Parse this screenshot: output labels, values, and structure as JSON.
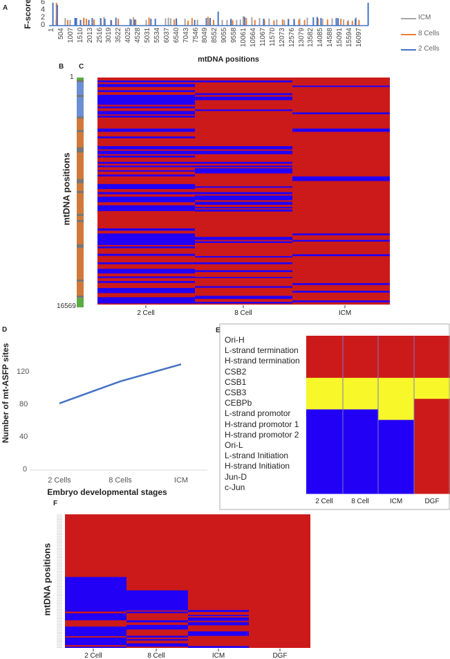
{
  "panels": {
    "a": "A",
    "b": "B",
    "c": "C",
    "d": "D",
    "e": "E",
    "f": "F"
  },
  "colors": {
    "icm": "#a5a5a5",
    "cells8": "#ed7d31",
    "cells2": "#4472c4",
    "red": "#cc1a1a",
    "blue": "#2200f5",
    "yellow": "#f7f72a",
    "green": "#5aac44",
    "orange": "#d0793a",
    "grey": "#777777",
    "genomeBlue": "#6b8fd4"
  },
  "chart_data": [
    {
      "panel": "A",
      "type": "bar",
      "ylabel": "F-score",
      "xlabel": "mtDNA positions",
      "ylim": [
        0,
        6
      ],
      "yticks": [
        "0",
        "2",
        "4",
        "6"
      ],
      "xlim": [
        1,
        16569
      ],
      "xticks": [
        "1",
        "504",
        "1007",
        "1510",
        "2013",
        "2516",
        "3019",
        "3522",
        "4025",
        "4528",
        "5031",
        "5534",
        "6037",
        "6540",
        "7043",
        "7546",
        "8049",
        "8552",
        "9055",
        "9558",
        "10061",
        "10564",
        "11067",
        "11570",
        "12073",
        "12576",
        "13079",
        "13582",
        "14085",
        "14588",
        "15091",
        "15594",
        "16097"
      ],
      "legend": {
        "placement": "right",
        "entries": [
          "ICM",
          "8 Cells",
          "2 Cells"
        ]
      },
      "series": [
        {
          "name": "ICM",
          "points": [
            [
              360,
              1.5
            ],
            [
              830,
              2
            ],
            [
              1085,
              1.5
            ],
            [
              1630,
              1.5
            ],
            [
              1810,
              2.1
            ],
            [
              2860,
              2.3
            ],
            [
              4220,
              1.8
            ],
            [
              4400,
              2.2
            ],
            [
              5070,
              1.5
            ],
            [
              6080,
              1.9
            ],
            [
              6230,
              2.1
            ],
            [
              6350,
              1.9
            ],
            [
              6650,
              1.3
            ],
            [
              7100,
              1.8
            ],
            [
              7750,
              1.6
            ],
            [
              8400,
              1.8
            ],
            [
              9050,
              1.5
            ],
            [
              9300,
              1.5
            ],
            [
              9520,
              1.8
            ],
            [
              9800,
              1.5
            ],
            [
              10000,
              1.6
            ],
            [
              10150,
              2.5
            ],
            [
              10600,
              2.2
            ],
            [
              11000,
              2
            ],
            [
              11500,
              1.9
            ],
            [
              11900,
              1.6
            ],
            [
              12300,
              1.5
            ],
            [
              12800,
              1.8
            ],
            [
              13100,
              1.9
            ],
            [
              13500,
              2.1
            ],
            [
              14300,
              1.8
            ],
            [
              14800,
              1.9
            ],
            [
              15100,
              2
            ],
            [
              15400,
              1.6
            ],
            [
              15650,
              1.4
            ],
            [
              16050,
              2.2
            ]
          ]
        },
        {
          "name": "8 Cells",
          "points": [
            [
              315,
              6
            ],
            [
              905,
              1.5
            ],
            [
              1740,
              2
            ],
            [
              1880,
              1.8
            ],
            [
              2280,
              1.6
            ],
            [
              2640,
              1.8
            ],
            [
              3190,
              1.3
            ],
            [
              3550,
              1.8
            ],
            [
              4460,
              1.6
            ],
            [
              5160,
              2.1
            ],
            [
              6480,
              1.6
            ],
            [
              7200,
              1.3
            ],
            [
              7410,
              2
            ],
            [
              8250,
              2.3
            ],
            [
              8540,
              1.5
            ],
            [
              9540,
              1.4
            ],
            [
              10250,
              2
            ],
            [
              10700,
              1.5
            ],
            [
              11200,
              1.6
            ],
            [
              11700,
              1.4
            ],
            [
              12150,
              1.6
            ],
            [
              12450,
              1.8
            ],
            [
              13000,
              1.5
            ],
            [
              13300,
              1.5
            ],
            [
              14000,
              1.9
            ],
            [
              14500,
              1.6
            ],
            [
              15200,
              1.8
            ],
            [
              15550,
              1.2
            ],
            [
              15800,
              1.3
            ],
            [
              16150,
              1.5
            ]
          ]
        },
        {
          "name": "2 Cells",
          "points": [
            [
              72,
              6
            ],
            [
              300,
              5.5
            ],
            [
              1230,
              2
            ],
            [
              1300,
              2
            ],
            [
              1520,
              1.5
            ],
            [
              1950,
              1.5
            ],
            [
              2130,
              2
            ],
            [
              2570,
              2
            ],
            [
              2790,
              1.8
            ],
            [
              3110,
              1.5
            ],
            [
              3370,
              2.1
            ],
            [
              4160,
              1.6
            ],
            [
              4350,
              1.6
            ],
            [
              5200,
              1.8
            ],
            [
              5430,
              1.8
            ],
            [
              6530,
              1.9
            ],
            [
              7490,
              1.5
            ],
            [
              8100,
              2
            ],
            [
              8300,
              2
            ],
            [
              8720,
              3.7
            ],
            [
              9380,
              1.7
            ],
            [
              10100,
              2.3
            ],
            [
              11100,
              1.8
            ],
            [
              12400,
              1.7
            ],
            [
              12700,
              1.6
            ],
            [
              13700,
              2.2
            ],
            [
              13900,
              2.3
            ],
            [
              14100,
              2
            ],
            [
              14900,
              2
            ],
            [
              15000,
              1.9
            ],
            [
              15900,
              1.8
            ],
            [
              16569,
              6
            ]
          ]
        }
      ]
    },
    {
      "panel": "B",
      "type": "genome-map",
      "top_label": "1",
      "bottom_label": "16569",
      "segments": [
        {
          "start": 1,
          "end": 200,
          "kind": "green"
        },
        {
          "start": 200,
          "end": 2900,
          "kind": "genomeBlue"
        },
        {
          "start": 2900,
          "end": 15900,
          "kind": "orange"
        },
        {
          "start": 15900,
          "end": 16569,
          "kind": "green"
        }
      ],
      "trna_marks": [
        260,
        1330,
        2880,
        3860,
        5100,
        5200,
        5330,
        7400,
        7550,
        8250,
        9900,
        10350,
        12100,
        12200,
        14640,
        15800
      ]
    },
    {
      "panel": "C",
      "type": "heatmap",
      "ylabel": "mtDNA positions",
      "columns": [
        {
          "label": "2 Cell",
          "blue_ranges": [
            [
              219,
              354
            ],
            [
              472,
              691
            ],
            [
              927,
              1062
            ],
            [
              1264,
              1989
            ],
            [
              2107,
              2242
            ],
            [
              2445,
              2698
            ],
            [
              2782,
              2917
            ],
            [
              3726,
              3962
            ],
            [
              4299,
              4434
            ],
            [
              5007,
              5243
            ],
            [
              5344,
              5597
            ],
            [
              5699,
              5834
            ],
            [
              6154,
              6289
            ],
            [
              6424,
              6542
            ],
            [
              6761,
              6862
            ],
            [
              7081,
              7216
            ],
            [
              7773,
              8143
            ],
            [
              8362,
              8514
            ],
            [
              8700,
              9104
            ],
            [
              9324,
              9745
            ],
            [
              11010,
              11179
            ],
            [
              11381,
              12224
            ],
            [
              12325,
              12460
            ],
            [
              12864,
              13015
            ],
            [
              13487,
              13622
            ],
            [
              13959,
              14297
            ],
            [
              14516,
              14634
            ],
            [
              14853,
              14988
            ],
            [
              15359,
              15730
            ],
            [
              16034,
              16489
            ]
          ]
        },
        {
          "label": "8 Cell",
          "blue_ranges": [
            [
              219,
              354
            ],
            [
              1146,
              1281
            ],
            [
              1399,
              1652
            ],
            [
              2327,
              2445
            ],
            [
              5007,
              5243
            ],
            [
              5344,
              5597
            ],
            [
              6154,
              6289
            ],
            [
              6424,
              6542
            ],
            [
              6626,
              6997
            ],
            [
              7941,
              8042
            ],
            [
              8362,
              8514
            ],
            [
              8615,
              8953
            ],
            [
              9071,
              9290
            ],
            [
              9442,
              9543
            ],
            [
              9627,
              9779
            ],
            [
              11634,
              11853
            ],
            [
              11954,
              12072
            ],
            [
              13032,
              13133
            ],
            [
              13487,
              13622
            ],
            [
              14061,
              14196
            ],
            [
              14550,
              14634
            ],
            [
              15224,
              15342
            ],
            [
              15932,
              16152
            ],
            [
              16371,
              16489
            ]
          ]
        },
        {
          "label": "ICM",
          "blue_ranges": [
            [
              590,
              691
            ],
            [
              2546,
              2681
            ],
            [
              3726,
              3962
            ],
            [
              7216,
              7553
            ],
            [
              11381,
              11516
            ],
            [
              11853,
              11971
            ],
            [
              12898,
              13032
            ],
            [
              15005,
              15140
            ],
            [
              15561,
              15696
            ],
            [
              16270,
              16405
            ]
          ]
        }
      ]
    },
    {
      "panel": "D",
      "type": "line",
      "ylabel": "Number of mt-ASFP sites",
      "xlabel": "Embryo developmental stages",
      "categories": [
        "2 Cells",
        "8 Cells",
        "ICM"
      ],
      "values": [
        82,
        109,
        130
      ],
      "ylim": [
        0,
        160
      ],
      "yticks": [
        "0",
        "40",
        "80",
        "120"
      ]
    },
    {
      "panel": "E",
      "type": "heatmap",
      "columns": [
        "2 Cell",
        "8 Cell",
        "ICM",
        "DGF"
      ],
      "rows": [
        "Ori-H",
        "L-strand termination",
        "H-strand termination",
        "CSB2",
        "CSB1",
        "CSB3",
        "CEBPb",
        "L-strand promotor",
        "H-strand promotor 1",
        "H-strand promotor 2",
        "Ori-L",
        "L-strand Initiation",
        "H-strand Initiation",
        "Jun-D",
        "c-Jun"
      ],
      "cells": [
        [
          "red",
          "red",
          "red",
          "red"
        ],
        [
          "red",
          "red",
          "red",
          "red"
        ],
        [
          "red",
          "red",
          "red",
          "red"
        ],
        [
          "red",
          "red",
          "red",
          "red"
        ],
        [
          "yellow",
          "yellow",
          "yellow",
          "yellow"
        ],
        [
          "yellow",
          "yellow",
          "yellow",
          "yellow"
        ],
        [
          "yellow",
          "yellow",
          "yellow",
          "red"
        ],
        [
          "blue",
          "blue",
          "yellow",
          "red"
        ],
        [
          "blue",
          "blue",
          "blue",
          "red"
        ],
        [
          "blue",
          "blue",
          "blue",
          "red"
        ],
        [
          "blue",
          "blue",
          "blue",
          "red"
        ],
        [
          "blue",
          "blue",
          "blue",
          "red"
        ],
        [
          "blue",
          "blue",
          "blue",
          "red"
        ],
        [
          "blue",
          "blue",
          "blue",
          "red"
        ],
        [
          "blue",
          "blue",
          "blue",
          "red"
        ]
      ]
    },
    {
      "panel": "F",
      "type": "heatmap",
      "ylabel": "mtDNA positions",
      "columns": [
        {
          "label": "2 Cell",
          "blue_percent_ranges": [
            [
              46.9,
              72.8
            ],
            [
              74.1,
              79.3
            ],
            [
              84.0,
              91.2
            ],
            [
              92.2,
              97.9
            ],
            [
              99.0,
              100
            ]
          ]
        },
        {
          "label": "8 Cell",
          "blue_percent_ranges": [
            [
              56.9,
              71.9
            ],
            [
              72.8,
              74.0
            ],
            [
              79.3,
              80.9
            ],
            [
              82.8,
              86.2
            ],
            [
              90.9,
              92.2
            ],
            [
              93.4,
              94.5
            ],
            [
              96.6,
              99.0
            ]
          ]
        },
        {
          "label": "ICM",
          "blue_percent_ranges": [
            [
              71.6,
              73.1
            ],
            [
              75.3,
              76.2
            ],
            [
              77.2,
              79.7
            ],
            [
              80.7,
              83.1
            ],
            [
              87.6,
              91.0
            ],
            [
              98.6,
              100
            ]
          ]
        },
        {
          "label": "DGF",
          "blue_percent_ranges": []
        }
      ]
    }
  ]
}
